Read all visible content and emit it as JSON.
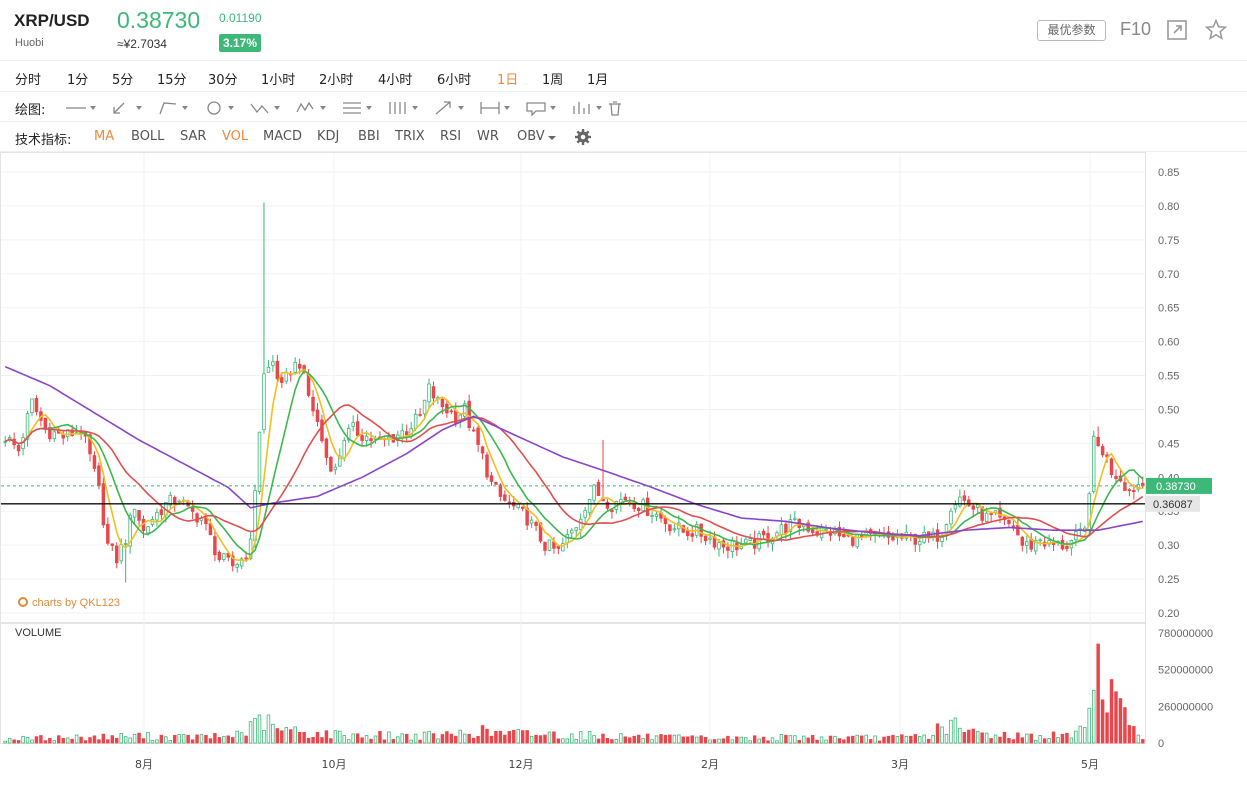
{
  "header": {
    "symbol": "XRP/USD",
    "exchange": "Huobi",
    "price": "0.38730",
    "change": "0.01190",
    "cny_price": "≈¥2.7034",
    "change_pct": "3.17%",
    "best_params_label": "最优参数",
    "f10_label": "F10",
    "icons": [
      "expand-icon",
      "star-icon"
    ]
  },
  "intervals": {
    "items": [
      "分时",
      "1分",
      "5分",
      "15分",
      "30分",
      "1小时",
      "2小时",
      "4小时",
      "6小时",
      "1日",
      "1周",
      "1月"
    ],
    "active": "1日"
  },
  "drawing": {
    "label": "绘图:",
    "tools": [
      "line-tool-icon",
      "pencil-tool-icon",
      "ray-tool-icon",
      "circle-tool-icon",
      "zigzag-tool-icon",
      "pattern-tool-icon",
      "fib-tool-icon",
      "parallel-tool-icon",
      "arrow-tool-icon",
      "range-tool-icon",
      "note-tool-icon",
      "bars-tool-icon",
      "trash-icon"
    ]
  },
  "indicators": {
    "label": "技术指标:",
    "items": [
      {
        "label": "MA",
        "active": true
      },
      {
        "label": "BOLL",
        "active": false
      },
      {
        "label": "SAR",
        "active": false
      },
      {
        "label": "VOL",
        "active": true
      },
      {
        "label": "MACD",
        "active": false
      },
      {
        "label": "KDJ",
        "active": false
      },
      {
        "label": "BBI",
        "active": false
      },
      {
        "label": "TRIX",
        "active": false
      },
      {
        "label": "RSI",
        "active": false
      },
      {
        "label": "WR",
        "active": false
      },
      {
        "label": "OBV",
        "active": false
      }
    ],
    "settings_icon": "gear-icon"
  },
  "watermark": "charts by QKL123",
  "chart_data": {
    "type": "candlestick",
    "price_axis": {
      "ticks": [
        "0.85",
        "0.80",
        "0.75",
        "0.70",
        "0.65",
        "0.60",
        "0.55",
        "0.50",
        "0.45",
        "0.40",
        "0.35",
        "0.30",
        "0.25",
        "0.20"
      ],
      "range": [
        0.2,
        0.85
      ]
    },
    "volume_title": "VOLUME",
    "volume_axis": {
      "ticks": [
        "780000000",
        "520000000",
        "260000000",
        "0"
      ],
      "range": [
        0,
        780000000
      ]
    },
    "x_ticks": [
      "8月",
      "10月",
      "12月",
      "2月",
      "3月",
      "5月"
    ],
    "last_price_label": "0.38730",
    "last_price": 0.3873,
    "support_label": "0.36087",
    "support": 0.36087,
    "colors": {
      "up": "#3cb878",
      "down": "#e8474c",
      "ma5": "#f0c020",
      "ma10": "#3cb850",
      "ma20": "#e05050",
      "ma60": "#8844cc"
    },
    "close_path": [
      [
        0,
        0.46
      ],
      [
        3,
        0.44
      ],
      [
        6,
        0.51
      ],
      [
        9,
        0.47
      ],
      [
        13,
        0.46
      ],
      [
        17,
        0.47
      ],
      [
        19,
        0.43
      ],
      [
        21,
        0.38
      ],
      [
        23,
        0.3
      ],
      [
        25,
        0.28
      ],
      [
        27,
        0.31
      ],
      [
        29,
        0.36
      ],
      [
        31,
        0.32
      ],
      [
        33,
        0.34
      ],
      [
        36,
        0.36
      ],
      [
        39,
        0.37
      ],
      [
        41,
        0.35
      ],
      [
        44,
        0.34
      ],
      [
        46,
        0.31
      ],
      [
        48,
        0.28
      ],
      [
        51,
        0.27
      ],
      [
        53,
        0.28
      ],
      [
        55,
        0.3
      ],
      [
        57,
        0.47
      ],
      [
        58,
        0.55
      ],
      [
        60,
        0.57
      ],
      [
        62,
        0.53
      ],
      [
        64,
        0.56
      ],
      [
        66,
        0.57
      ],
      [
        68,
        0.52
      ],
      [
        70,
        0.48
      ],
      [
        72,
        0.43
      ],
      [
        74,
        0.41
      ],
      [
        76,
        0.46
      ],
      [
        78,
        0.47
      ],
      [
        81,
        0.46
      ],
      [
        84,
        0.45
      ],
      [
        87,
        0.46
      ],
      [
        90,
        0.47
      ],
      [
        93,
        0.49
      ],
      [
        95,
        0.53
      ],
      [
        97,
        0.51
      ],
      [
        99,
        0.5
      ],
      [
        101,
        0.49
      ],
      [
        103,
        0.5
      ],
      [
        105,
        0.46
      ],
      [
        107,
        0.43
      ],
      [
        109,
        0.39
      ],
      [
        111,
        0.37
      ],
      [
        113,
        0.36
      ],
      [
        115,
        0.35
      ],
      [
        117,
        0.34
      ],
      [
        119,
        0.32
      ],
      [
        121,
        0.3
      ],
      [
        124,
        0.29
      ],
      [
        126,
        0.31
      ],
      [
        128,
        0.33
      ],
      [
        130,
        0.36
      ],
      [
        132,
        0.38
      ],
      [
        134,
        0.37
      ],
      [
        136,
        0.36
      ],
      [
        139,
        0.37
      ],
      [
        142,
        0.36
      ],
      [
        145,
        0.35
      ],
      [
        147,
        0.34
      ],
      [
        149,
        0.33
      ],
      [
        152,
        0.32
      ],
      [
        155,
        0.32
      ],
      [
        158,
        0.31
      ],
      [
        161,
        0.3
      ],
      [
        164,
        0.3
      ],
      [
        167,
        0.3
      ],
      [
        170,
        0.31
      ],
      [
        173,
        0.32
      ],
      [
        176,
        0.33
      ],
      [
        179,
        0.33
      ],
      [
        182,
        0.32
      ],
      [
        185,
        0.32
      ],
      [
        188,
        0.31
      ],
      [
        191,
        0.31
      ],
      [
        194,
        0.31
      ],
      [
        197,
        0.31
      ],
      [
        200,
        0.31
      ],
      [
        203,
        0.31
      ],
      [
        206,
        0.31
      ],
      [
        208,
        0.31
      ],
      [
        210,
        0.32
      ],
      [
        212,
        0.36
      ],
      [
        214,
        0.37
      ],
      [
        216,
        0.36
      ],
      [
        218,
        0.35
      ],
      [
        220,
        0.34
      ],
      [
        222,
        0.34
      ],
      [
        224,
        0.33
      ],
      [
        226,
        0.33
      ],
      [
        228,
        0.3
      ],
      [
        230,
        0.3
      ],
      [
        232,
        0.31
      ],
      [
        234,
        0.3
      ],
      [
        236,
        0.3
      ],
      [
        238,
        0.3
      ],
      [
        240,
        0.31
      ],
      [
        242,
        0.32
      ],
      [
        244,
        0.45
      ],
      [
        246,
        0.44
      ],
      [
        248,
        0.41
      ],
      [
        250,
        0.4
      ],
      [
        252,
        0.38
      ],
      [
        254,
        0.39
      ],
      [
        255,
        0.3873
      ]
    ],
    "ma60_path": [
      [
        0,
        0.563
      ],
      [
        10,
        0.535
      ],
      [
        20,
        0.495
      ],
      [
        30,
        0.455
      ],
      [
        40,
        0.42
      ],
      [
        50,
        0.385
      ],
      [
        55,
        0.355
      ],
      [
        60,
        0.362
      ],
      [
        70,
        0.372
      ],
      [
        80,
        0.4
      ],
      [
        90,
        0.435
      ],
      [
        98,
        0.47
      ],
      [
        105,
        0.49
      ],
      [
        115,
        0.46
      ],
      [
        125,
        0.43
      ],
      [
        135,
        0.408
      ],
      [
        145,
        0.385
      ],
      [
        155,
        0.36
      ],
      [
        165,
        0.34
      ],
      [
        175,
        0.335
      ],
      [
        185,
        0.325
      ],
      [
        195,
        0.318
      ],
      [
        205,
        0.314
      ],
      [
        215,
        0.322
      ],
      [
        225,
        0.326
      ],
      [
        235,
        0.322
      ],
      [
        245,
        0.322
      ],
      [
        255,
        0.335
      ]
    ],
    "volume_profile": [
      [
        0,
        30
      ],
      [
        10,
        40
      ],
      [
        20,
        45
      ],
      [
        30,
        55
      ],
      [
        40,
        45
      ],
      [
        50,
        50
      ],
      [
        55,
        110
      ],
      [
        58,
        190
      ],
      [
        60,
        110
      ],
      [
        70,
        70
      ],
      [
        80,
        60
      ],
      [
        90,
        55
      ],
      [
        100,
        60
      ],
      [
        105,
        95
      ],
      [
        110,
        75
      ],
      [
        120,
        70
      ],
      [
        130,
        60
      ],
      [
        140,
        50
      ],
      [
        150,
        40
      ],
      [
        160,
        35
      ],
      [
        170,
        40
      ],
      [
        180,
        45
      ],
      [
        190,
        40
      ],
      [
        200,
        40
      ],
      [
        208,
        60
      ],
      [
        210,
        150
      ],
      [
        212,
        160
      ],
      [
        214,
        90
      ],
      [
        220,
        70
      ],
      [
        230,
        50
      ],
      [
        240,
        60
      ],
      [
        244,
        400
      ],
      [
        246,
        740
      ],
      [
        247,
        530
      ],
      [
        249,
        300
      ],
      [
        251,
        200
      ],
      [
        253,
        150
      ],
      [
        255,
        60
      ]
    ]
  }
}
